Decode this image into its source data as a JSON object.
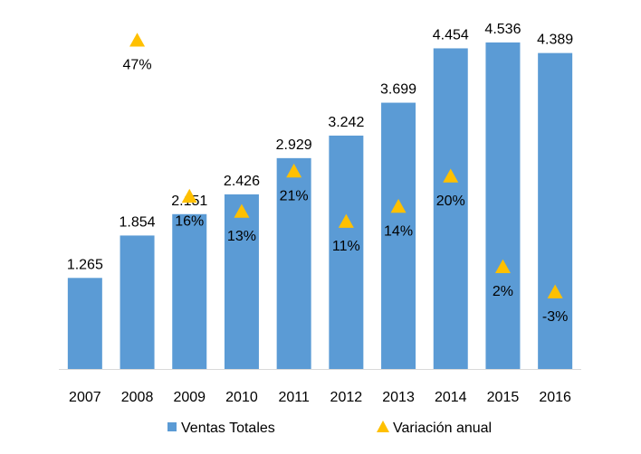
{
  "colors": {
    "bar": "#5b9bd5",
    "marker": "#ffc000",
    "gridline": "#ffffff",
    "baseline": "#d9d9d9",
    "text": "#000000"
  },
  "chart_data": {
    "type": "bar",
    "categories": [
      "2007",
      "2008",
      "2009",
      "2010",
      "2011",
      "2012",
      "2013",
      "2014",
      "2015",
      "2016"
    ],
    "series": [
      {
        "name": "Ventas Totales",
        "type": "bar",
        "values": [
          1265,
          1854,
          2151,
          2426,
          2929,
          3242,
          3699,
          4454,
          4536,
          4389
        ],
        "labels": [
          "1.265",
          "1.854",
          "2.151",
          "2.426",
          "2.929",
          "3.242",
          "3.699",
          "4.454",
          "4.536",
          "4.389"
        ]
      },
      {
        "name": "Variación anual",
        "type": "scatter",
        "marker": "triangle",
        "values": [
          null,
          47,
          16,
          13,
          21,
          11,
          14,
          20,
          2,
          -3
        ],
        "labels": [
          null,
          "47%",
          "16%",
          "13%",
          "21%",
          "11%",
          "14%",
          "20%",
          "2%",
          "-3%"
        ]
      }
    ],
    "ylim": [
      0,
      5000
    ],
    "y2lim": [
      -10,
      50
    ],
    "grid": true,
    "axes_visible": false,
    "legend": {
      "position": "bottom",
      "entries": [
        "Ventas Totales",
        "Variación anual"
      ]
    }
  }
}
